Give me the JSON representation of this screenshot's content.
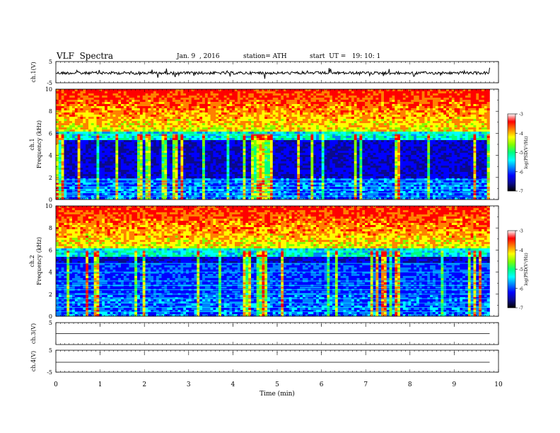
{
  "header": {
    "title": "VLF  Spectra",
    "date": "Jan. 9  , 2016",
    "station": "station= ATH",
    "start": "start  UT =   19: 10: 1"
  },
  "colors": {
    "trace": "#000000",
    "frame": "#000000",
    "colormap": [
      "#000000",
      "#0a0a8c",
      "#0000ff",
      "#0080ff",
      "#00ffff",
      "#00ff80",
      "#80ff00",
      "#ffff00",
      "#ff8000",
      "#ff0000",
      "#ffffff"
    ]
  },
  "chart_data": [
    {
      "type": "line",
      "ylabel": "ch.1(V)",
      "ylim": [
        -5,
        5
      ],
      "y_ticks": [
        "5",
        "-5"
      ],
      "description_series": "noisy signal centered slightly below 0 V with occasional spikes",
      "mean_value": -0.4
    },
    {
      "type": "heatmap",
      "ylabel": "ch.1\nFrequency  (kHz)",
      "ylim": [
        0,
        10
      ],
      "y_ticks": [
        "0",
        "2",
        "4",
        "6",
        "8",
        "10"
      ],
      "colorbar": {
        "label": "log(PSD(V²/Hz)",
        "range": [
          -7,
          -3
        ],
        "ticks": [
          "-3",
          "-4",
          "-5",
          "-6",
          "-7"
        ]
      }
    },
    {
      "type": "heatmap",
      "ylabel": "ch.2\nFrequency  (kHz)",
      "ylim": [
        0,
        10
      ],
      "y_ticks": [
        "0",
        "2",
        "4",
        "6",
        "8",
        "10"
      ],
      "colorbar": {
        "label": "log(PSD(V²/Hz)",
        "range": [
          -7,
          -3
        ],
        "ticks": [
          "-3",
          "-4",
          "-5",
          "-6",
          "-7"
        ]
      }
    },
    {
      "type": "line",
      "ylabel": "ch.3(V)",
      "ylim": [
        -5,
        5
      ],
      "y_ticks": [
        "5"
      ],
      "mean_value": 0
    },
    {
      "type": "line",
      "ylabel": "ch.4(V)",
      "ylim": [
        -5,
        5
      ],
      "y_ticks": [
        "5",
        "-5"
      ],
      "mean_value": -0.5
    }
  ],
  "x_axis": {
    "xlabel": "Time  (min)",
    "xlim": [
      0,
      10
    ],
    "ticks": [
      "0",
      "1",
      "2",
      "3",
      "4",
      "5",
      "6",
      "7",
      "8",
      "9",
      "10"
    ],
    "data_end": 9.8
  }
}
